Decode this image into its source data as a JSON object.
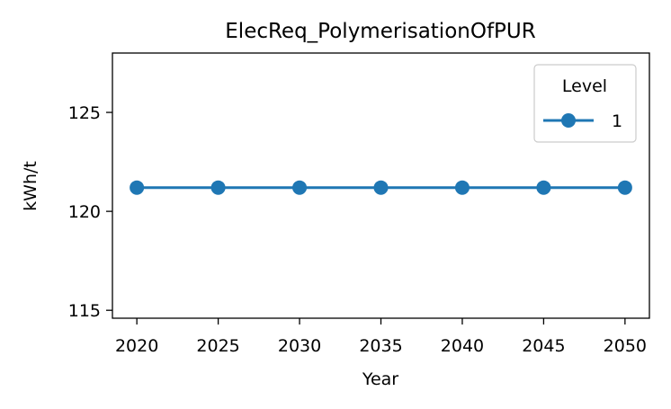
{
  "chart_data": {
    "type": "line",
    "title": "ElecReq_PolymerisationOfPUR",
    "xlabel": "Year",
    "ylabel": "kWh/t",
    "x": [
      2020,
      2025,
      2030,
      2035,
      2040,
      2045,
      2050
    ],
    "xticks": [
      "2020",
      "2025",
      "2030",
      "2035",
      "2040",
      "2045",
      "2050"
    ],
    "yticks": [
      "115",
      "120",
      "125"
    ],
    "ylim": [
      114.6,
      128.0
    ],
    "xlim": [
      2018.5,
      2051.5
    ],
    "legend": {
      "title": "Level",
      "placement": "top-right"
    },
    "series": [
      {
        "name": "1",
        "color": "#1f77b4",
        "marker": "circle",
        "values": [
          121.2,
          121.2,
          121.2,
          121.2,
          121.2,
          121.2,
          121.2
        ]
      }
    ],
    "grid": false
  }
}
